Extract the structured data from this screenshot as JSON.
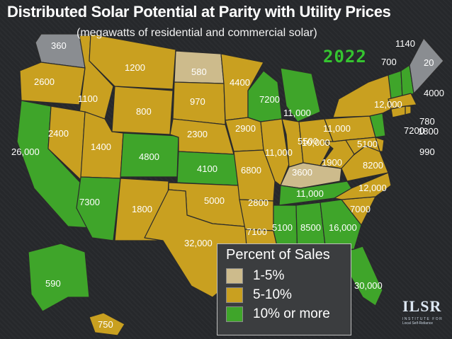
{
  "title": "Distributed Solar Potential at Parity with Utility Prices",
  "subtitle": "(megawatts of residential and commercial solar)",
  "year": "2022",
  "colors": {
    "tier_low": "#cdbb8c",
    "tier_mid": "#c9a020",
    "tier_high": "#3fa52a",
    "borders": "#2b2b2b"
  },
  "legend": {
    "title": "Percent of Sales",
    "items": [
      {
        "label": "1-5%",
        "color": "#cdbb8c"
      },
      {
        "label": "5-10%",
        "color": "#c9a020"
      },
      {
        "label": "10% or more",
        "color": "#3fa52a"
      }
    ]
  },
  "states": {
    "WA": {
      "value": "360",
      "tier": "gray"
    },
    "OR": {
      "value": "2600",
      "tier": "mid"
    },
    "CA": {
      "value": "26,000",
      "tier": "high"
    },
    "ID": {
      "value": "1100",
      "tier": "mid"
    },
    "NV": {
      "value": "2400",
      "tier": "mid"
    },
    "UT": {
      "value": "1400",
      "tier": "mid"
    },
    "AZ": {
      "value": "7300",
      "tier": "high"
    },
    "MT": {
      "value": "1200",
      "tier": "mid"
    },
    "WY": {
      "value": "800",
      "tier": "mid"
    },
    "CO": {
      "value": "4800",
      "tier": "high"
    },
    "NM": {
      "value": "1800",
      "tier": "mid"
    },
    "ND": {
      "value": "580",
      "tier": "low"
    },
    "SD": {
      "value": "970",
      "tier": "mid"
    },
    "NE": {
      "value": "2300",
      "tier": "mid"
    },
    "KS": {
      "value": "4100",
      "tier": "high"
    },
    "OK": {
      "value": "5000",
      "tier": "mid"
    },
    "TX": {
      "value": "32,000",
      "tier": "mid"
    },
    "MN": {
      "value": "4400",
      "tier": "mid"
    },
    "IA": {
      "value": "2900",
      "tier": "mid"
    },
    "MO": {
      "value": "6800",
      "tier": "mid"
    },
    "AR": {
      "value": "2800",
      "tier": "mid"
    },
    "LA": {
      "value": "7100",
      "tier": "mid"
    },
    "WI": {
      "value": "7200",
      "tier": "high"
    },
    "IL": {
      "value": "11,000",
      "tier": "mid"
    },
    "MI": {
      "value": "11,000",
      "tier": "high"
    },
    "IN": {
      "value": "5500",
      "tier": "mid"
    },
    "OH": {
      "value": "10,000",
      "tier": "mid"
    },
    "KY": {
      "value": "3600",
      "tier": "low"
    },
    "TN": {
      "value": "11,000",
      "tier": "high"
    },
    "MS": {
      "value": "5100",
      "tier": "high"
    },
    "AL": {
      "value": "8500",
      "tier": "high"
    },
    "GA": {
      "value": "16,000",
      "tier": "high"
    },
    "FL": {
      "value": "30,000",
      "tier": "high"
    },
    "SC": {
      "value": "7000",
      "tier": "mid"
    },
    "NC": {
      "value": "12,000",
      "tier": "mid"
    },
    "VA": {
      "value": "8200",
      "tier": "mid"
    },
    "WV": {
      "value": "1900",
      "tier": "mid"
    },
    "PA": {
      "value": "11,000",
      "tier": "mid"
    },
    "NY": {
      "value": "12,000",
      "tier": "mid"
    },
    "VT": {
      "value": "700",
      "tier": "high"
    },
    "NH": {
      "value": "1140",
      "tier": "high"
    },
    "ME": {
      "value": "20",
      "tier": "gray"
    },
    "MA": {
      "value": "4000",
      "tier": "mid"
    },
    "RI": {
      "value": "780",
      "tier": "mid"
    },
    "CT": {
      "value": "1800",
      "tier": "mid"
    },
    "NJ": {
      "value": "7200",
      "tier": "high"
    },
    "DE": {
      "value": "990",
      "tier": "mid"
    },
    "MD": {
      "value": "5100",
      "tier": "mid"
    },
    "AK": {
      "value": "590",
      "tier": "high"
    },
    "HI": {
      "value": "750",
      "tier": "mid"
    }
  },
  "logo": {
    "main": "ILSR",
    "sub": "INSTITUTE FOR",
    "sub2": "Local Self-Reliance"
  }
}
